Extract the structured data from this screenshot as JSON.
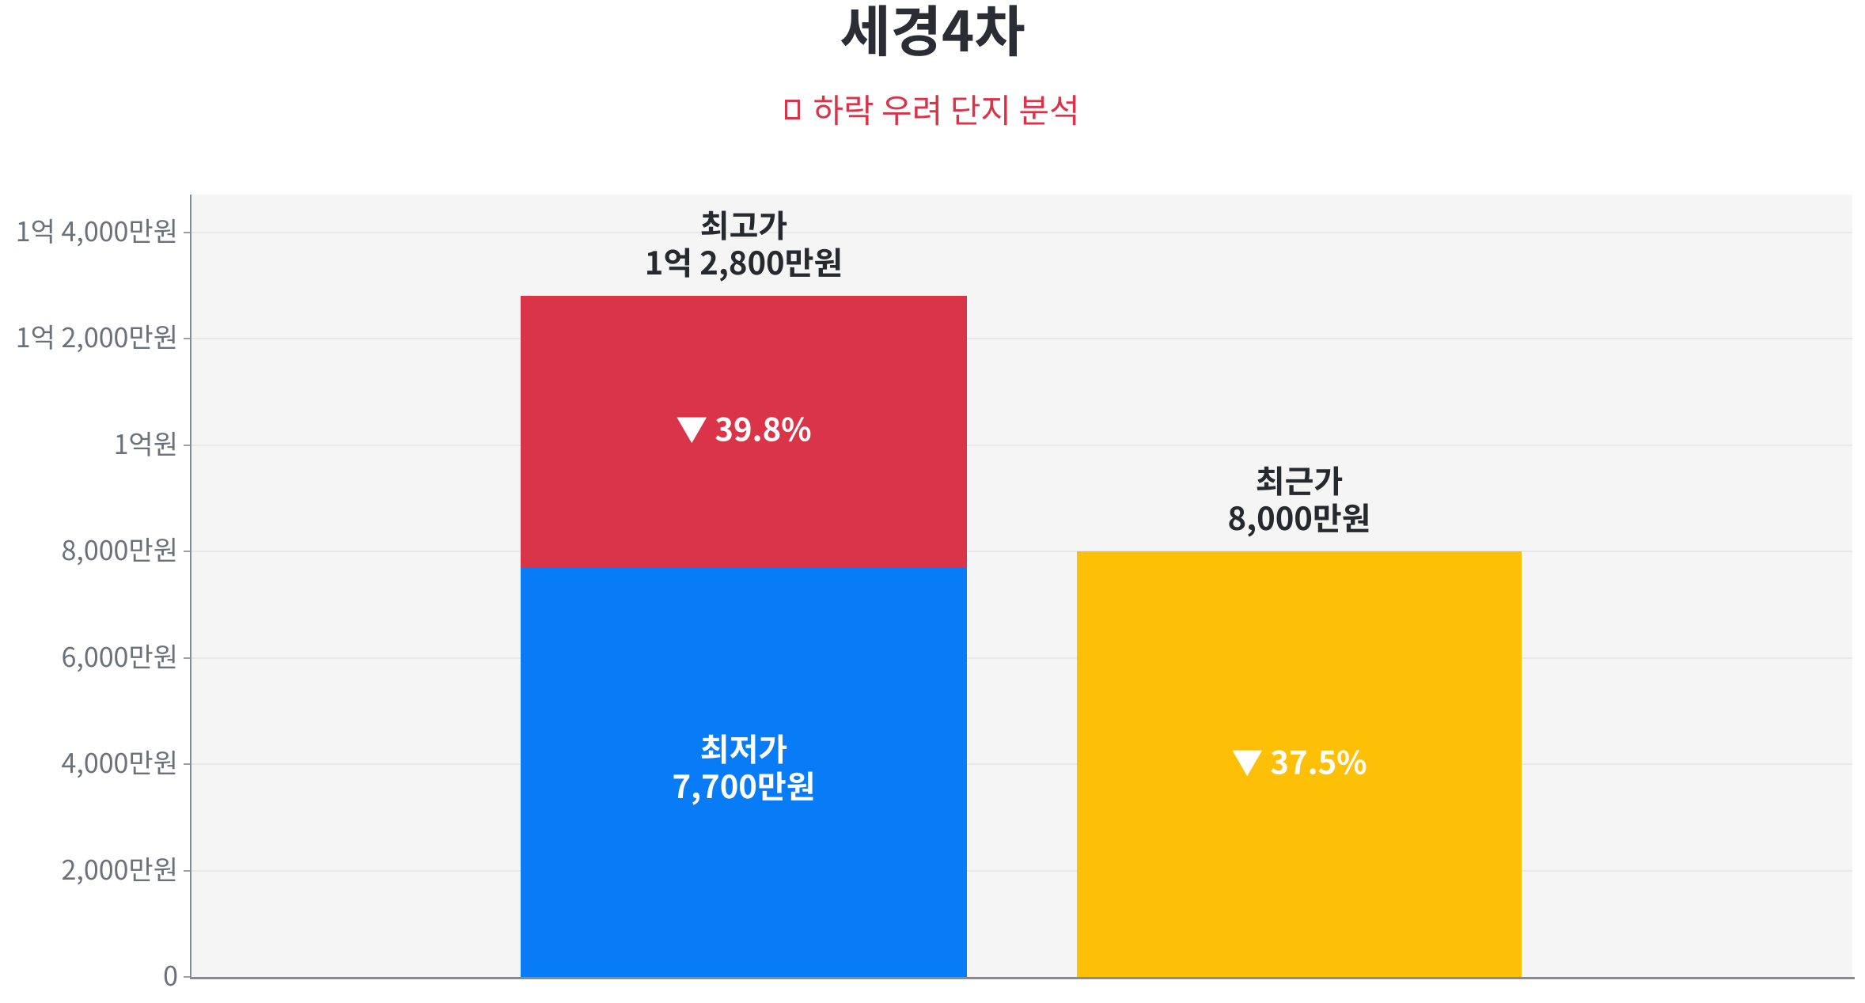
{
  "chart_data": {
    "type": "bar",
    "title": "세경4차",
    "subtitle": {
      "icon": "missing-glyph-box",
      "text": "하락 우려 단지 분석"
    },
    "xlabel": "",
    "ylabel": "",
    "unit": "만원",
    "ylim": [
      0,
      14700
    ],
    "grid": true,
    "legend": false,
    "y_ticks": [
      {
        "value": 0,
        "label": "0"
      },
      {
        "value": 2000,
        "label": "2,000만원"
      },
      {
        "value": 4000,
        "label": "4,000만원"
      },
      {
        "value": 6000,
        "label": "6,000만원"
      },
      {
        "value": 8000,
        "label": "8,000만원"
      },
      {
        "value": 10000,
        "label": "1억원"
      },
      {
        "value": 12000,
        "label": "1억 2,000만원"
      },
      {
        "value": 14000,
        "label": "1억 4,000만원"
      }
    ],
    "bars": [
      {
        "segments": [
          {
            "from": 0,
            "to": 7700,
            "color": "#087bf6",
            "label": {
              "lines": [
                "최저가",
                "7,700만원"
              ],
              "color": "#ffffff"
            }
          },
          {
            "from": 7700,
            "to": 12800,
            "color": "#da3449",
            "label": {
              "lines": [
                "▼ 39.8%"
              ],
              "color": "#ffffff"
            }
          }
        ],
        "top_label": {
          "lines": [
            "최고가",
            "1억 2,800만원"
          ],
          "color": "#26292e"
        }
      },
      {
        "segments": [
          {
            "from": 0,
            "to": 8000,
            "color": "#fdc007",
            "label": {
              "lines": [
                "▼ 37.5%"
              ],
              "color": "#ffffff"
            }
          }
        ],
        "top_label": {
          "lines": [
            "최근가",
            "8,000만원"
          ],
          "color": "#26292e"
        }
      }
    ]
  },
  "palette": {
    "background": "#ffffff",
    "plot_background": "#f5f5f5",
    "gridline": "#e8e8e8",
    "axis_line": "#848b92",
    "tick": "#9aa1a8",
    "tick_label": "#6a717a",
    "title": "#2a2e34",
    "subtitle": "#d9334a"
  }
}
